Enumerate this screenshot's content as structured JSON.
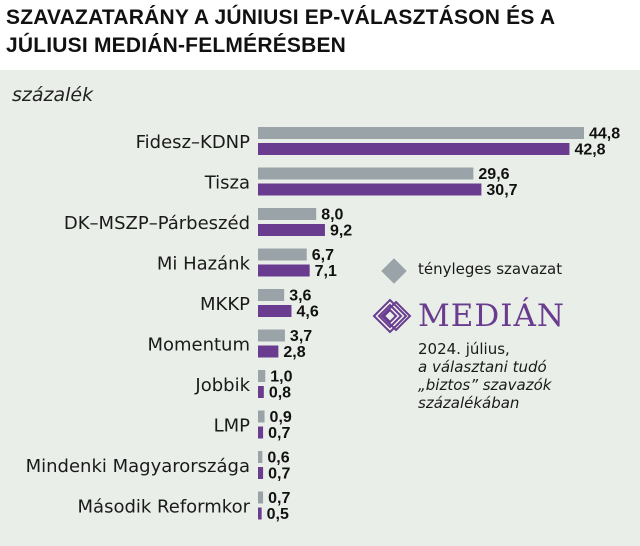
{
  "title": "SZAVAZATARÁNY A JÚNIUSI EP-VÁLASZTÁSON ÉS A JÚLIUSI MEDIÁN-FELMÉRÉSBEN",
  "unit_label": "százalék",
  "legend": {
    "actual": "tényleges szavazat",
    "median_brand": "MEDIÁN",
    "note_line1": "2024. július,",
    "note_line2": "a választani tudó",
    "note_line3": "„biztos” szavazók",
    "note_line4": "százalékában"
  },
  "colors": {
    "actual": "#9aa3a8",
    "median": "#6a3c8f",
    "panel": "#e9efe8"
  },
  "chart_data": {
    "type": "bar",
    "orientation": "horizontal",
    "categories": [
      "Fidesz–KDNP",
      "Tisza",
      "DK–MSZP–Párbeszéd",
      "Mi Hazánk",
      "MKKP",
      "Momentum",
      "Jobbik",
      "LMP",
      "Mindenki Magyarországa",
      "Második Reformkor"
    ],
    "series": [
      {
        "values": [
          44.8,
          29.6,
          8.0,
          6.7,
          3.6,
          3.7,
          1.0,
          0.9,
          0.6,
          0.7
        ],
        "labels": [
          "44,8",
          "29,6",
          "8,0",
          "6,7",
          "3,6",
          "3,7",
          "1,0",
          "0,9",
          "0,6",
          "0,7"
        ]
      },
      {
        "values": [
          42.8,
          30.7,
          9.2,
          7.1,
          4.6,
          2.8,
          0.8,
          0.7,
          0.7,
          0.5
        ],
        "labels": [
          "42,8",
          "30,7",
          "9,2",
          "7,1",
          "4,6",
          "2,8",
          "0,8",
          "0,7",
          "0,7",
          "0,5"
        ]
      }
    ],
    "xlim": [
      0,
      44.8
    ],
    "grid": false,
    "legend_position": "right"
  }
}
